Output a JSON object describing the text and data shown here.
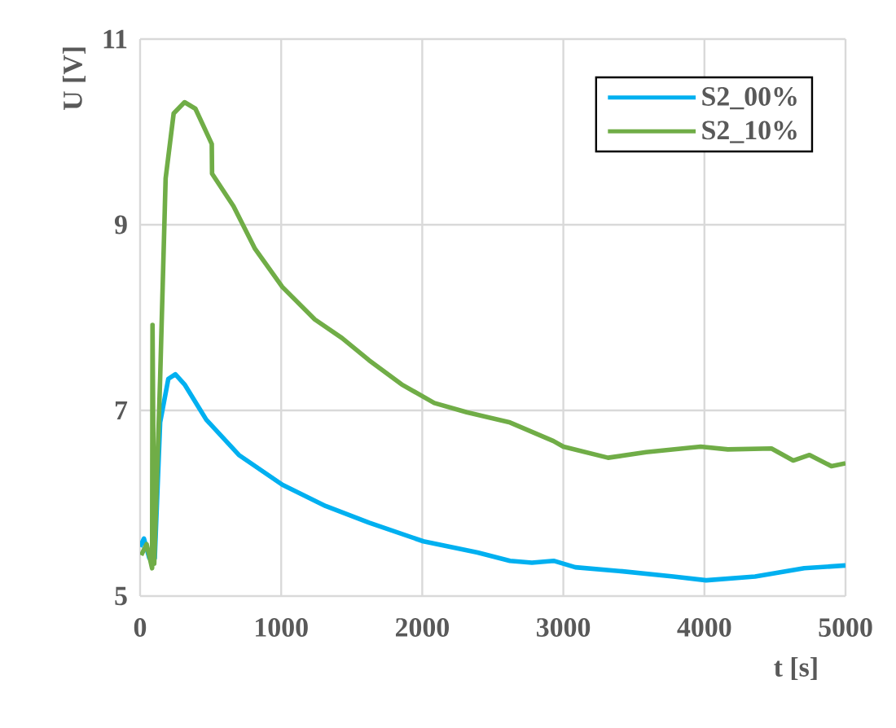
{
  "chart_data": {
    "type": "line",
    "xlabel": "t [s]",
    "ylabel": "U [V]",
    "xlim": [
      0,
      5000
    ],
    "ylim": [
      5,
      11
    ],
    "xticks": [
      0,
      1000,
      2000,
      3000,
      4000,
      5000
    ],
    "yticks": [
      5,
      7,
      9,
      11
    ],
    "grid": true,
    "legend": "top right",
    "line_style": "solid",
    "marker": "none",
    "series": [
      {
        "name": "S2_00%",
        "color": "#00b0f0",
        "x": [
          0,
          27,
          65,
          104,
          142,
          200,
          250,
          315,
          469,
          700,
          1008,
          1315,
          1623,
          2008,
          2392,
          2622,
          2777,
          2931,
          3085,
          3394,
          3780,
          4012,
          4359,
          4707,
          5000
        ],
        "values": [
          5.53,
          5.62,
          5.41,
          5.41,
          6.87,
          7.34,
          7.39,
          7.28,
          6.9,
          6.52,
          6.2,
          5.97,
          5.79,
          5.59,
          5.47,
          5.38,
          5.36,
          5.38,
          5.31,
          5.27,
          5.21,
          5.17,
          5.21,
          5.3,
          5.33
        ]
      },
      {
        "name": "S2_10%",
        "color": "#70ad47",
        "x": [
          8,
          46,
          85,
          88,
          100,
          142,
          181,
          238,
          315,
          392,
          508,
          510,
          662,
          815,
          1008,
          1238,
          1431,
          1623,
          1854,
          2085,
          2315,
          2622,
          2930,
          3000,
          3317,
          3587,
          3973,
          4166,
          4475,
          4629,
          4745,
          4900,
          5000
        ],
        "values": [
          5.44,
          5.56,
          5.3,
          7.92,
          5.35,
          7.34,
          9.5,
          10.2,
          10.32,
          10.25,
          9.87,
          9.55,
          9.2,
          8.74,
          8.33,
          7.98,
          7.78,
          7.54,
          7.28,
          7.08,
          6.98,
          6.87,
          6.67,
          6.61,
          6.49,
          6.55,
          6.61,
          6.58,
          6.59,
          6.46,
          6.52,
          6.4,
          6.43
        ]
      }
    ]
  }
}
